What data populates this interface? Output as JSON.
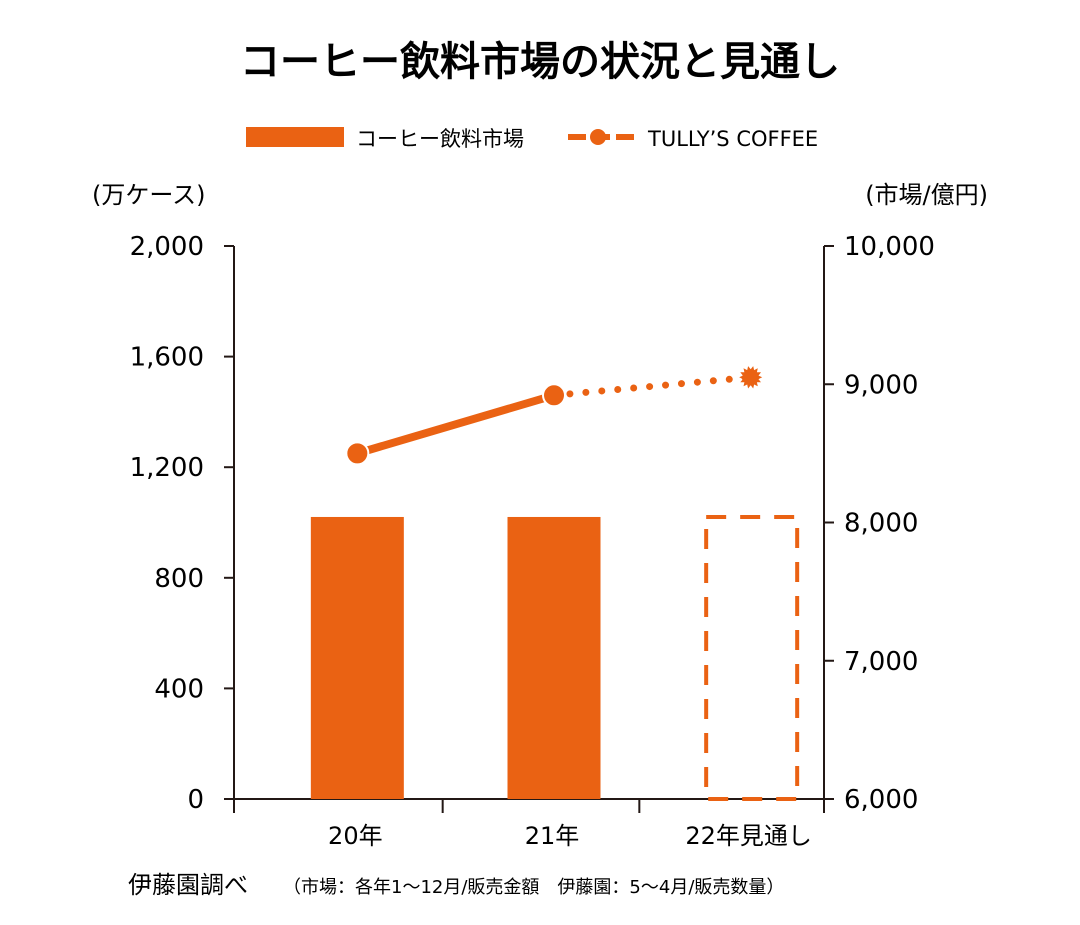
{
  "chart_data": {
    "type": "bar+line",
    "title": "コーヒー飲料市場の状況と見通し",
    "categories": [
      "20年",
      "21年",
      "22年見通し"
    ],
    "series": [
      {
        "name": "コーヒー飲料市場",
        "type": "bar",
        "axis": "right",
        "values": [
          8040,
          8040,
          8040
        ],
        "projected": [
          false,
          false,
          true
        ],
        "color": "#EA6213"
      },
      {
        "name": "TULLY’S COFFEE",
        "type": "line",
        "axis": "left",
        "values": [
          1250,
          1460,
          1525
        ],
        "projected": [
          false,
          false,
          true
        ],
        "color": "#EA6213"
      }
    ],
    "left_axis": {
      "label": "(万ケース)",
      "ylim": [
        0,
        2000
      ],
      "ticks": [
        "0",
        "400",
        "800",
        "1,200",
        "1,600",
        "2,000"
      ]
    },
    "right_axis": {
      "label": "(市場/億円)",
      "ylim": [
        6000,
        10000
      ],
      "ticks": [
        "6,000",
        "7,000",
        "8,000",
        "9,000",
        "10,000"
      ]
    },
    "legend_position": "top-center",
    "grid": false,
    "source_lead": "伊藤園調べ",
    "source_note": "（市場：各年1〜12月/販売金額　伊藤園：5〜4月/販売数量）"
  }
}
